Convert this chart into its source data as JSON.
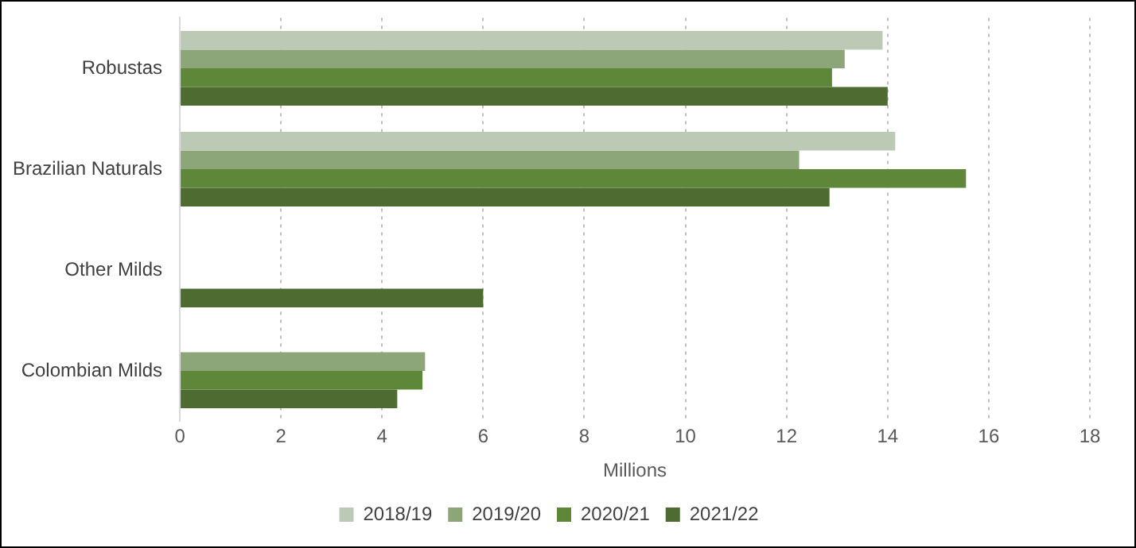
{
  "chart_data": {
    "type": "bar",
    "orientation": "horizontal",
    "xlabel": "Millions",
    "categories": [
      "Robustas",
      "Brazilian Naturals",
      "Other Milds",
      "Colombian Milds"
    ],
    "series": [
      {
        "name": "2018/19",
        "color": "#bccab5",
        "values": [
          13.9,
          14.15,
          null,
          null
        ]
      },
      {
        "name": "2019/20",
        "color": "#8ca679",
        "values": [
          13.15,
          12.25,
          null,
          4.85
        ]
      },
      {
        "name": "2020/21",
        "color": "#5f873a",
        "values": [
          12.9,
          15.55,
          null,
          4.8
        ]
      },
      {
        "name": "2021/22",
        "color": "#4e6b31",
        "values": [
          14.0,
          12.85,
          6.0,
          4.3
        ]
      }
    ],
    "xlim": [
      0,
      18
    ],
    "xticks": [
      0,
      2,
      4,
      6,
      8,
      10,
      12,
      14,
      16,
      18
    ],
    "grid": "x",
    "legend": "bottom"
  }
}
